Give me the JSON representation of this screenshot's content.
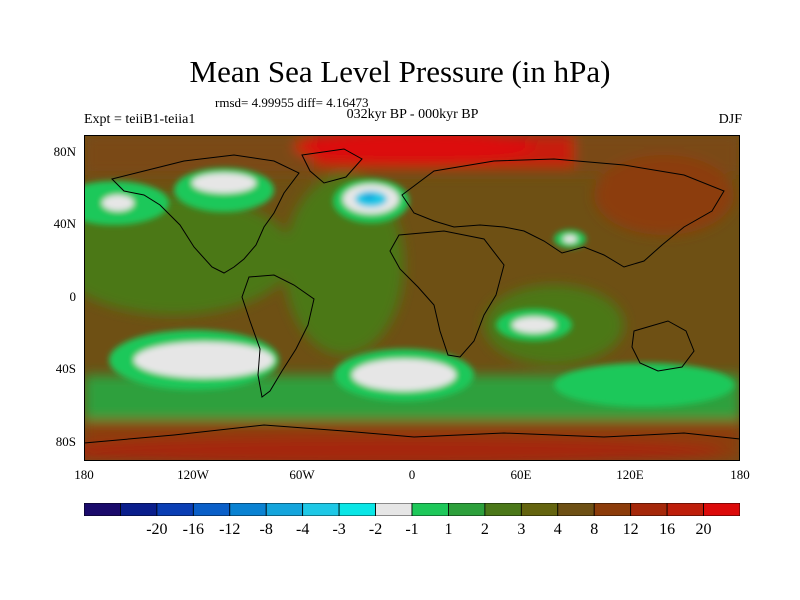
{
  "title": "Mean Sea Level Pressure (in hPa)",
  "stats": "rmsd= 4.99955 diff= 4.16473",
  "subtitle": "032kyr BP - 000kyr BP",
  "left_label": "Expt = teiiB1-teiia1",
  "right_label": "DJF",
  "y_ticks": [
    "80N",
    "40N",
    "0",
    "40S",
    "80S"
  ],
  "x_ticks": [
    "180",
    "120W",
    "60W",
    "0",
    "60E",
    "120E",
    "180"
  ],
  "colors": {
    "background": "#7a4a0e",
    "land_outline": "#000000",
    "bins": [
      "#1a0a6b",
      "#0a1e8c",
      "#0a3eb4",
      "#0a5fc8",
      "#0a82d2",
      "#14a5dc",
      "#1ec8e6",
      "#0ae6e6",
      "#e6e6e6",
      "#1ec85a",
      "#2da03c",
      "#4b7819",
      "#64640f",
      "#6e5014",
      "#8c3c0a",
      "#a5280a",
      "#be1e0a",
      "#dc0a0a"
    ]
  },
  "colorbar_labels": [
    "-20",
    "-16",
    "-12",
    "-8",
    "-4",
    "-3",
    "-2",
    "-1",
    "1",
    "2",
    "3",
    "4",
    "8",
    "12",
    "16",
    "20"
  ]
}
